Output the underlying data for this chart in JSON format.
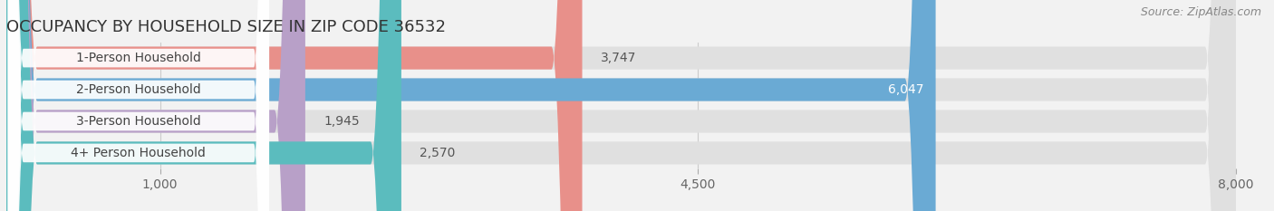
{
  "title": "OCCUPANCY BY HOUSEHOLD SIZE IN ZIP CODE 36532",
  "source": "Source: ZipAtlas.com",
  "categories": [
    "1-Person Household",
    "2-Person Household",
    "3-Person Household",
    "4+ Person Household"
  ],
  "values": [
    3747,
    6047,
    1945,
    2570
  ],
  "bar_colors": [
    "#e8908a",
    "#6aaad4",
    "#b8a0c8",
    "#5bbcbe"
  ],
  "bar_labels": [
    "3,747",
    "6,047",
    "1,945",
    "2,570"
  ],
  "label_inside": [
    false,
    true,
    false,
    false
  ],
  "xlim": [
    0,
    8000
  ],
  "xticks": [
    1000,
    4500,
    8000
  ],
  "xticklabels": [
    "1,000",
    "4,500",
    "8,000"
  ],
  "background_color": "#f2f2f2",
  "bar_bg_color": "#e0e0e0",
  "title_fontsize": 13,
  "source_fontsize": 9,
  "tick_fontsize": 10,
  "label_fontsize": 10,
  "category_fontsize": 10
}
